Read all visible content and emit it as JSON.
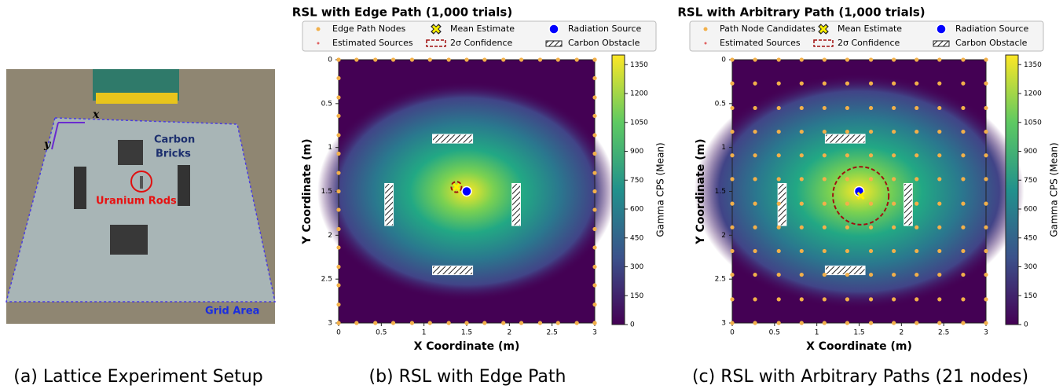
{
  "photo": {
    "axis_x": "x",
    "axis_y": "y",
    "carbon_label_1": "Carbon",
    "carbon_label_2": "Bricks",
    "uranium_label": "Uranium Rods",
    "grid_label": "Grid Area",
    "caption": "(a) Lattice Experiment Setup"
  },
  "chart_data": [
    {
      "type": "heatmap",
      "title": "RSL with Edge Path (1,000 trials)",
      "caption": "(b) RSL with Edge Path",
      "x_label": "X Coordinate (m)",
      "y_label": "Y Coordinate (m)",
      "colorbar_label": "Gamma CPS (Mean)",
      "xlim": [
        0,
        3
      ],
      "ylim": [
        0,
        3
      ],
      "y_inverted": true,
      "xticks": [
        0,
        0.5,
        1,
        1.5,
        2,
        2.5,
        3
      ],
      "yticks": [
        0,
        0.5,
        1,
        1.5,
        2,
        2.5,
        3
      ],
      "clim": [
        0,
        1400
      ],
      "cticks": [
        0,
        150,
        300,
        450,
        600,
        750,
        900,
        1050,
        1200,
        1350
      ],
      "nodes": {
        "name": "Edge Path Nodes",
        "color": "#f2b04a",
        "edge_positions": [
          0,
          0.21,
          0.43,
          0.64,
          0.86,
          1.07,
          1.29,
          1.5,
          1.71,
          1.93,
          2.14,
          2.36,
          2.57,
          2.79,
          3
        ]
      },
      "estimates": {
        "name": "Estimated Sources",
        "color": "#e06060"
      },
      "mean": {
        "name": "Mean Estimate",
        "color": "#fff000",
        "x": 1.38,
        "y": 1.45
      },
      "confidence": {
        "name": "2σ Confidence",
        "color": "#a01010",
        "radius": 0.06
      },
      "source": {
        "name": "Radiation Source",
        "color": "#0000ff",
        "x": 1.5,
        "y": 1.5
      },
      "obstacles": {
        "name": "Carbon Obstacle",
        "rects": [
          [
            1.1,
            1.57,
            0.85,
            0.95
          ],
          [
            1.1,
            1.57,
            2.35,
            2.45
          ],
          [
            0.54,
            0.64,
            1.41,
            1.89
          ],
          [
            2.03,
            2.13,
            1.41,
            1.89
          ]
        ]
      }
    },
    {
      "type": "heatmap",
      "title": "RSL with Arbitrary Path (1,000 trials)",
      "caption": "(c) RSL with Arbitrary Paths (21 nodes)",
      "x_label": "X Coordinate (m)",
      "y_label": "Y Coordinate (m)",
      "colorbar_label": "Gamma CPS (Mean)",
      "xlim": [
        0,
        3
      ],
      "ylim": [
        0,
        3
      ],
      "y_inverted": true,
      "xticks": [
        0,
        0.5,
        1,
        1.5,
        2,
        2.5,
        3
      ],
      "yticks": [
        0,
        0.5,
        1,
        1.5,
        2,
        2.5,
        3
      ],
      "clim": [
        0,
        1400
      ],
      "cticks": [
        0,
        150,
        300,
        450,
        600,
        750,
        900,
        1050,
        1200,
        1350
      ],
      "nodes": {
        "name": "Path Node Candidates",
        "color": "#f2b04a",
        "grid": [
          0,
          0.27,
          0.55,
          0.82,
          1.09,
          1.36,
          1.64,
          1.91,
          2.18,
          2.45,
          2.73,
          3
        ]
      },
      "estimates": {
        "name": "Estimated Sources",
        "color": "#e06060"
      },
      "mean": {
        "name": "Mean Estimate",
        "color": "#fff000",
        "x": 1.52,
        "y": 1.55
      },
      "confidence": {
        "name": "2σ Confidence",
        "color": "#a01010",
        "radius": 0.33
      },
      "source": {
        "name": "Radiation Source",
        "color": "#0000ff",
        "x": 1.5,
        "y": 1.5
      },
      "obstacles": {
        "name": "Carbon Obstacle",
        "rects": [
          [
            1.1,
            1.57,
            0.85,
            0.95
          ],
          [
            1.1,
            1.57,
            2.35,
            2.45
          ],
          [
            0.54,
            0.64,
            1.41,
            1.89
          ],
          [
            2.03,
            2.13,
            1.41,
            1.89
          ]
        ]
      }
    }
  ]
}
